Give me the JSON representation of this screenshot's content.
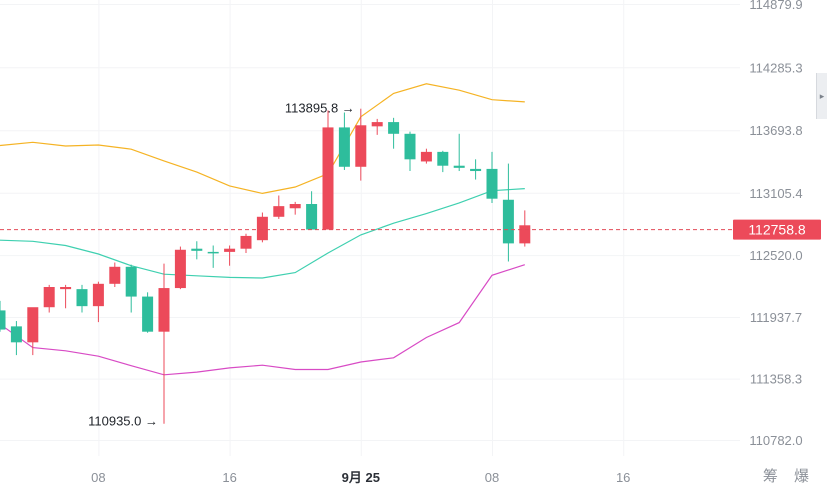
{
  "colors": {
    "up": "#ec4a5a",
    "down": "#2ebd9c",
    "upper_band": "#f5b324",
    "middle_band": "#3fd0b0",
    "lower_band": "#d84bc5",
    "price_line": "#e34b58",
    "price_tag": "#ec4a5a",
    "axis_text": "#8b9098",
    "grid": "#f3f4f6"
  },
  "chart_data": {
    "type": "candlestick",
    "y_axis": {
      "ticks": [
        114879.9,
        114285.3,
        113693.8,
        113105.4,
        112520.0,
        111937.7,
        111358.3,
        110782.0
      ],
      "tick_labels": [
        "114879.9",
        "114285.3",
        "113693.8",
        "113105.4",
        "112520.0",
        "111937.7",
        "111358.3",
        "110782.0"
      ],
      "position": "right"
    },
    "x_axis": {
      "tick_labels": [
        "08",
        "16",
        "9月 25",
        "08",
        "16"
      ],
      "tick_slots": [
        6,
        14,
        22,
        30,
        38
      ]
    },
    "current_price": {
      "value": 112758.8,
      "label": "112758.8"
    },
    "annotations": [
      {
        "label": "113895.8 →",
        "value": 113895.8,
        "slot": 22,
        "anchor": "high"
      },
      {
        "label": "110935.0 →",
        "value": 110935.0,
        "slot": 10,
        "anchor": "low"
      }
    ],
    "candles": [
      {
        "slot": 0,
        "open": 112000,
        "high": 112090,
        "low": 111800,
        "close": 111820
      },
      {
        "slot": 1,
        "open": 111850,
        "high": 111900,
        "low": 111580,
        "close": 111700
      },
      {
        "slot": 2,
        "open": 111700,
        "high": 112020,
        "low": 111580,
        "close": 112030
      },
      {
        "slot": 3,
        "open": 112030,
        "high": 112240,
        "low": 111980,
        "close": 112220
      },
      {
        "slot": 4,
        "open": 112200,
        "high": 112240,
        "low": 112020,
        "close": 112220
      },
      {
        "slot": 5,
        "open": 112200,
        "high": 112240,
        "low": 111980,
        "close": 112040
      },
      {
        "slot": 6,
        "open": 112040,
        "high": 112270,
        "low": 111890,
        "close": 112250
      },
      {
        "slot": 7,
        "open": 112250,
        "high": 112450,
        "low": 112220,
        "close": 112410
      },
      {
        "slot": 8,
        "open": 112410,
        "high": 112430,
        "low": 111980,
        "close": 112130
      },
      {
        "slot": 9,
        "open": 112130,
        "high": 112170,
        "low": 111790,
        "close": 111800
      },
      {
        "slot": 10,
        "open": 111800,
        "high": 112440,
        "low": 110935,
        "close": 112210
      },
      {
        "slot": 11,
        "open": 112210,
        "high": 112600,
        "low": 112200,
        "close": 112570
      },
      {
        "slot": 12,
        "open": 112580,
        "high": 112650,
        "low": 112480,
        "close": 112560
      },
      {
        "slot": 13,
        "open": 112550,
        "high": 112610,
        "low": 112400,
        "close": 112540
      },
      {
        "slot": 14,
        "open": 112550,
        "high": 112610,
        "low": 112420,
        "close": 112580
      },
      {
        "slot": 15,
        "open": 112580,
        "high": 112720,
        "low": 112540,
        "close": 112700
      },
      {
        "slot": 16,
        "open": 112660,
        "high": 112920,
        "low": 112640,
        "close": 112880
      },
      {
        "slot": 17,
        "open": 112880,
        "high": 113080,
        "low": 112860,
        "close": 112980
      },
      {
        "slot": 18,
        "open": 112960,
        "high": 113020,
        "low": 112900,
        "close": 113000
      },
      {
        "slot": 19,
        "open": 113000,
        "high": 113120,
        "low": 112760,
        "close": 112760
      },
      {
        "slot": 20,
        "open": 112760,
        "high": 113880,
        "low": 112760,
        "close": 113720
      },
      {
        "slot": 21,
        "open": 113720,
        "high": 113860,
        "low": 113320,
        "close": 113350
      },
      {
        "slot": 22,
        "open": 113350,
        "high": 113895.8,
        "low": 113220,
        "close": 113740
      },
      {
        "slot": 23,
        "open": 113730,
        "high": 113800,
        "low": 113650,
        "close": 113770
      },
      {
        "slot": 24,
        "open": 113770,
        "high": 113810,
        "low": 113520,
        "close": 113660
      },
      {
        "slot": 25,
        "open": 113660,
        "high": 113680,
        "low": 113310,
        "close": 113420
      },
      {
        "slot": 26,
        "open": 113400,
        "high": 113520,
        "low": 113380,
        "close": 113490
      },
      {
        "slot": 27,
        "open": 113490,
        "high": 113500,
        "low": 113300,
        "close": 113360
      },
      {
        "slot": 28,
        "open": 113360,
        "high": 113660,
        "low": 113310,
        "close": 113340
      },
      {
        "slot": 29,
        "open": 113330,
        "high": 113420,
        "low": 113230,
        "close": 113310
      },
      {
        "slot": 30,
        "open": 113330,
        "high": 113490,
        "low": 113010,
        "close": 113050
      },
      {
        "slot": 31,
        "open": 113040,
        "high": 113380,
        "low": 112460,
        "close": 112630
      },
      {
        "slot": 32,
        "open": 112630,
        "high": 112940,
        "low": 112600,
        "close": 112800
      }
    ],
    "bands": {
      "upper": [
        [
          0,
          113550
        ],
        [
          2,
          113580
        ],
        [
          4,
          113545
        ],
        [
          6,
          113555
        ],
        [
          8,
          113515
        ],
        [
          10,
          113405
        ],
        [
          12,
          113300
        ],
        [
          14,
          113170
        ],
        [
          16,
          113100
        ],
        [
          18,
          113160
        ],
        [
          20,
          113285
        ],
        [
          22,
          113820
        ],
        [
          24,
          114040
        ],
        [
          26,
          114130
        ],
        [
          28,
          114070
        ],
        [
          30,
          113980
        ],
        [
          32,
          113960
        ]
      ],
      "middle": [
        [
          0,
          112660
        ],
        [
          2,
          112650
        ],
        [
          4,
          112610
        ],
        [
          6,
          112530
        ],
        [
          8,
          112420
        ],
        [
          10,
          112340
        ],
        [
          12,
          112325
        ],
        [
          14,
          112310
        ],
        [
          16,
          112305
        ],
        [
          18,
          112355
        ],
        [
          20,
          112540
        ],
        [
          22,
          112710
        ],
        [
          24,
          112820
        ],
        [
          26,
          112910
        ],
        [
          28,
          113010
        ],
        [
          30,
          113125
        ],
        [
          32,
          113145
        ]
      ],
      "lower": [
        [
          0,
          111870
        ],
        [
          2,
          111650
        ],
        [
          4,
          111620
        ],
        [
          6,
          111570
        ],
        [
          8,
          111480
        ],
        [
          10,
          111395
        ],
        [
          12,
          111420
        ],
        [
          14,
          111460
        ],
        [
          16,
          111485
        ],
        [
          18,
          111445
        ],
        [
          20,
          111445
        ],
        [
          22,
          111515
        ],
        [
          24,
          111555
        ],
        [
          26,
          111745
        ],
        [
          28,
          111885
        ],
        [
          30,
          112330
        ],
        [
          32,
          112430
        ]
      ]
    }
  },
  "ui": {
    "corner_label": "筹 爆",
    "side_tab_icon": "chevron-right-icon"
  }
}
